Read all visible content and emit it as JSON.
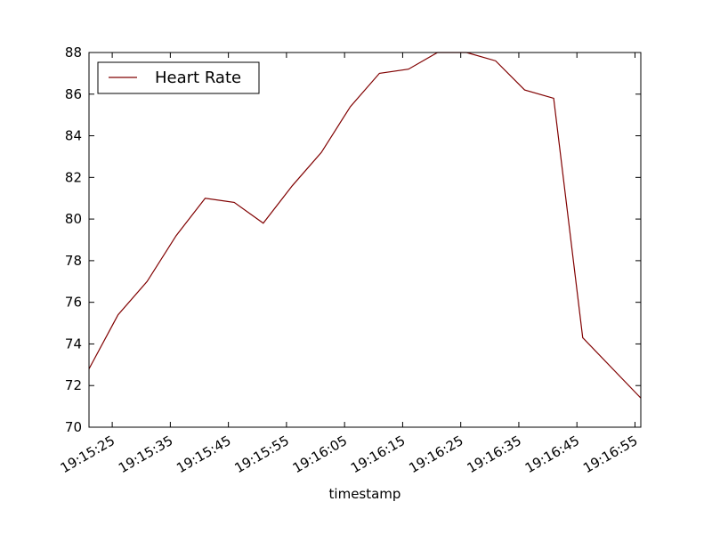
{
  "chart_data": {
    "type": "line",
    "x": [
      "19:15:21",
      "19:15:26",
      "19:15:31",
      "19:15:36",
      "19:15:41",
      "19:15:46",
      "19:15:51",
      "19:15:56",
      "19:16:01",
      "19:16:06",
      "19:16:11",
      "19:16:16",
      "19:16:21",
      "19:16:26",
      "19:16:31",
      "19:16:36",
      "19:16:41",
      "19:16:46",
      "19:16:56"
    ],
    "series": [
      {
        "name": "Heart Rate",
        "color": "#800000",
        "values": [
          72.8,
          75.4,
          77.0,
          79.2,
          81.0,
          80.8,
          79.8,
          81.6,
          83.2,
          85.4,
          87.0,
          87.2,
          88.0,
          88.0,
          87.6,
          86.2,
          85.8,
          74.3,
          71.4
        ]
      }
    ],
    "xlabel": "timestamp",
    "xlim": [
      "19:15:21",
      "19:16:56"
    ],
    "xticks": [
      "19:15:25",
      "19:15:35",
      "19:15:45",
      "19:15:55",
      "19:16:05",
      "19:16:15",
      "19:16:25",
      "19:16:35",
      "19:16:45",
      "19:16:55"
    ],
    "ylim": [
      70,
      88
    ],
    "yticks": [
      70,
      72,
      74,
      76,
      78,
      80,
      82,
      84,
      86,
      88
    ],
    "legend": "upper left",
    "grid": false
  }
}
